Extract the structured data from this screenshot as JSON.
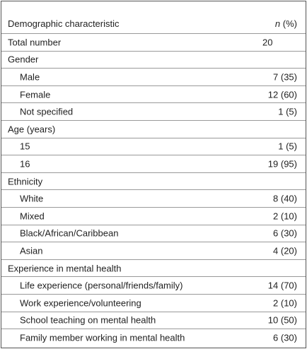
{
  "table": {
    "header": {
      "label": "Demographic characteristic",
      "value": {
        "italic": "n",
        "text": " (%)"
      }
    },
    "total": {
      "label": "Total number",
      "value": "20"
    },
    "groups": [
      {
        "label": "Gender",
        "rows": [
          [
            "Male",
            "7 (35)"
          ],
          [
            "Female",
            "12 (60)"
          ],
          [
            "Not specified",
            "1 (5)"
          ]
        ]
      },
      {
        "label": "Age (years)",
        "rows": [
          [
            "15",
            "1 (5)"
          ],
          [
            "16",
            "19 (95)"
          ]
        ]
      },
      {
        "label": "Ethnicity",
        "rows": [
          [
            "White",
            "8 (40)"
          ],
          [
            "Mixed",
            "2 (10)"
          ],
          [
            "Black/African/Caribbean",
            "6 (30)"
          ],
          [
            "Asian",
            "4 (20)"
          ]
        ]
      },
      {
        "label": "Experience in mental health",
        "rows": [
          [
            "Life experience (personal/friends/family)",
            "14 (70)"
          ],
          [
            "Work experience/volunteering",
            "2 (10)"
          ],
          [
            "School teaching on mental health",
            "10 (50)"
          ],
          [
            "Family member working in mental health",
            "6 (30)"
          ]
        ]
      }
    ]
  }
}
